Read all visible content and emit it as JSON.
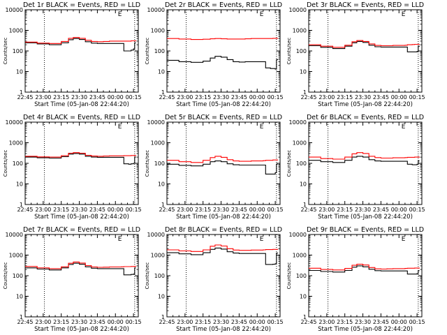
{
  "figure": {
    "background": "#ffffff",
    "events_color": "#000000",
    "lld_color": "#ff0000",
    "ylabel": "Counts/sec",
    "xlabel": "Start Time (05-Jan-08 22:44:20)",
    "xtick_labels": [
      "22:45",
      "23:00",
      "23:15",
      "23:30",
      "23:45",
      "00:00",
      "00:15"
    ],
    "ytick_labels": [
      "1",
      "10",
      "100",
      "1000",
      "10000"
    ],
    "corner_label": "E"
  },
  "chart_data": [
    {
      "type": "line",
      "title": "Det 1r BLACK = Events, RED = LLD",
      "x_range_minutes": [
        0,
        94
      ],
      "ylim": [
        1,
        10000
      ],
      "yscale": "log",
      "grid": false,
      "vlines_minutes": [
        16,
        91
      ],
      "x_minutes": [
        0,
        10,
        20,
        30,
        36,
        40,
        45,
        50,
        55,
        60,
        65,
        70,
        75,
        80,
        82,
        86,
        88,
        90,
        91,
        92
      ],
      "series": [
        {
          "name": "Events",
          "values": [
            250,
            220,
            200,
            250,
            350,
            400,
            360,
            280,
            240,
            230,
            230,
            230,
            230,
            230,
            100,
            100,
            110,
            125,
            250,
            250
          ]
        },
        {
          "name": "LLD",
          "values": [
            270,
            240,
            230,
            290,
            410,
            450,
            410,
            330,
            290,
            280,
            290,
            300,
            300,
            300,
            300,
            300,
            310,
            310,
            310,
            320
          ]
        }
      ]
    },
    {
      "type": "line",
      "title": "Det 2r BLACK = Events, RED = LLD",
      "x_range_minutes": [
        0,
        94
      ],
      "ylim": [
        1,
        10000
      ],
      "yscale": "log",
      "grid": false,
      "vlines_minutes": [
        16,
        91
      ],
      "x_minutes": [
        0,
        10,
        20,
        30,
        36,
        40,
        45,
        50,
        55,
        60,
        65,
        70,
        75,
        80,
        82,
        86,
        88,
        90,
        91,
        92
      ],
      "series": [
        {
          "name": "Events",
          "values": [
            35,
            30,
            28,
            32,
            45,
            55,
            50,
            38,
            30,
            29,
            30,
            30,
            30,
            30,
            15,
            14,
            14,
            13,
            38,
            40
          ]
        },
        {
          "name": "LLD",
          "values": [
            400,
            380,
            360,
            370,
            390,
            400,
            390,
            380,
            380,
            380,
            390,
            400,
            400,
            400,
            400,
            400,
            410,
            410,
            410,
            420
          ]
        }
      ]
    },
    {
      "type": "line",
      "title": "Det 3r BLACK = Events, RED = LLD",
      "x_range_minutes": [
        0,
        94
      ],
      "ylim": [
        1,
        10000
      ],
      "yscale": "log",
      "grid": false,
      "vlines_minutes": [
        16,
        91
      ],
      "x_minutes": [
        0,
        10,
        20,
        30,
        36,
        40,
        45,
        50,
        55,
        60,
        65,
        70,
        75,
        80,
        82,
        86,
        88,
        90,
        91,
        92
      ],
      "series": [
        {
          "name": "Events",
          "values": [
            180,
            150,
            130,
            170,
            250,
            290,
            260,
            190,
            160,
            155,
            155,
            155,
            155,
            155,
            90,
            90,
            90,
            95,
            170,
            175
          ]
        },
        {
          "name": "LLD",
          "values": [
            200,
            170,
            150,
            190,
            280,
            320,
            290,
            220,
            185,
            180,
            180,
            185,
            185,
            190,
            200,
            205,
            210,
            210,
            210,
            215
          ]
        }
      ]
    },
    {
      "type": "line",
      "title": "Det 4r BLACK = Events, RED = LLD",
      "x_range_minutes": [
        0,
        94
      ],
      "ylim": [
        1,
        10000
      ],
      "yscale": "log",
      "grid": false,
      "vlines_minutes": [
        16,
        91
      ],
      "x_minutes": [
        0,
        10,
        20,
        30,
        36,
        40,
        45,
        50,
        55,
        60,
        65,
        70,
        75,
        80,
        82,
        86,
        88,
        90,
        91,
        92
      ],
      "series": [
        {
          "name": "Events",
          "values": [
            200,
            185,
            180,
            210,
            280,
            300,
            280,
            220,
            200,
            195,
            195,
            195,
            195,
            195,
            95,
            90,
            95,
            100,
            200,
            200
          ]
        },
        {
          "name": "LLD",
          "values": [
            220,
            205,
            200,
            235,
            310,
            330,
            310,
            245,
            225,
            220,
            225,
            230,
            230,
            230,
            235,
            235,
            240,
            240,
            240,
            245
          ]
        }
      ]
    },
    {
      "type": "line",
      "title": "Det 5r BLACK = Events, RED = LLD",
      "x_range_minutes": [
        0,
        94
      ],
      "ylim": [
        1,
        10000
      ],
      "yscale": "log",
      "grid": false,
      "vlines_minutes": [
        16,
        91
      ],
      "x_minutes": [
        0,
        10,
        20,
        30,
        36,
        40,
        45,
        50,
        55,
        60,
        65,
        70,
        75,
        80,
        82,
        86,
        88,
        90,
        91,
        92
      ],
      "series": [
        {
          "name": "Events",
          "values": [
            90,
            80,
            75,
            90,
            120,
            130,
            120,
            95,
            85,
            82,
            82,
            82,
            82,
            82,
            30,
            30,
            30,
            35,
            90,
            90
          ]
        },
        {
          "name": "LLD",
          "values": [
            140,
            120,
            110,
            140,
            190,
            220,
            195,
            150,
            130,
            125,
            125,
            130,
            130,
            135,
            140,
            140,
            145,
            145,
            145,
            150
          ]
        }
      ]
    },
    {
      "type": "line",
      "title": "Det 6r BLACK = Events, RED = LLD",
      "x_range_minutes": [
        0,
        94
      ],
      "ylim": [
        1,
        10000
      ],
      "yscale": "log",
      "grid": false,
      "vlines_minutes": [
        16,
        91
      ],
      "x_minutes": [
        0,
        10,
        20,
        30,
        36,
        40,
        45,
        50,
        55,
        60,
        65,
        70,
        75,
        80,
        82,
        86,
        88,
        90,
        91,
        92
      ],
      "series": [
        {
          "name": "Events",
          "values": [
            140,
            120,
            110,
            140,
            200,
            220,
            200,
            150,
            130,
            125,
            125,
            125,
            125,
            125,
            90,
            85,
            85,
            90,
            130,
            130
          ]
        },
        {
          "name": "LLD",
          "values": [
            200,
            170,
            160,
            200,
            290,
            330,
            300,
            220,
            190,
            180,
            180,
            185,
            185,
            190,
            195,
            195,
            200,
            200,
            200,
            205
          ]
        }
      ]
    },
    {
      "type": "line",
      "title": "Det 7r BLACK = Events, RED = LLD",
      "x_range_minutes": [
        0,
        94
      ],
      "ylim": [
        1,
        10000
      ],
      "yscale": "log",
      "grid": false,
      "vlines_minutes": [
        16,
        91
      ],
      "x_minutes": [
        0,
        10,
        20,
        30,
        36,
        40,
        45,
        50,
        55,
        60,
        65,
        70,
        75,
        80,
        82,
        86,
        88,
        90,
        91,
        92
      ],
      "series": [
        {
          "name": "Events",
          "values": [
            240,
            210,
            190,
            240,
            350,
            400,
            360,
            270,
            230,
            220,
            220,
            220,
            220,
            220,
            110,
            110,
            115,
            120,
            240,
            240
          ]
        },
        {
          "name": "LLD",
          "values": [
            280,
            240,
            220,
            270,
            400,
            460,
            410,
            310,
            265,
            255,
            260,
            265,
            265,
            270,
            275,
            275,
            280,
            280,
            285,
            290
          ]
        }
      ]
    },
    {
      "type": "line",
      "title": "Det 8r BLACK = Events, RED = LLD",
      "x_range_minutes": [
        0,
        94
      ],
      "ylim": [
        1,
        10000
      ],
      "yscale": "log",
      "grid": false,
      "vlines_minutes": [
        16,
        91
      ],
      "x_minutes": [
        0,
        10,
        20,
        30,
        36,
        40,
        45,
        50,
        55,
        60,
        65,
        70,
        75,
        80,
        82,
        86,
        88,
        90,
        91,
        92
      ],
      "series": [
        {
          "name": "Events",
          "values": [
            1300,
            1150,
            1050,
            1300,
            1900,
            2200,
            1950,
            1450,
            1250,
            1200,
            1200,
            1200,
            1200,
            1200,
            350,
            350,
            360,
            380,
            1250,
            1300
          ]
        },
        {
          "name": "LLD",
          "values": [
            1800,
            1600,
            1500,
            1800,
            2700,
            3100,
            2750,
            2050,
            1750,
            1700,
            1700,
            1750,
            1750,
            1800,
            1850,
            1850,
            1900,
            1900,
            1900,
            1950
          ]
        }
      ]
    },
    {
      "type": "line",
      "title": "Det 9r BLACK = Events, RED = LLD",
      "x_range_minutes": [
        0,
        94
      ],
      "ylim": [
        1,
        10000
      ],
      "yscale": "log",
      "grid": false,
      "vlines_minutes": [
        16,
        91
      ],
      "x_minutes": [
        0,
        10,
        20,
        30,
        36,
        40,
        45,
        50,
        55,
        60,
        65,
        70,
        75,
        80,
        82,
        86,
        88,
        90,
        91,
        92
      ],
      "series": [
        {
          "name": "Events",
          "values": [
            180,
            160,
            150,
            180,
            260,
            300,
            270,
            205,
            175,
            170,
            170,
            170,
            170,
            170,
            120,
            120,
            120,
            125,
            175,
            175
          ]
        },
        {
          "name": "LLD",
          "values": [
            230,
            200,
            190,
            225,
            320,
            360,
            330,
            250,
            215,
            210,
            215,
            220,
            220,
            225,
            230,
            230,
            235,
            235,
            235,
            240
          ]
        }
      ]
    }
  ]
}
